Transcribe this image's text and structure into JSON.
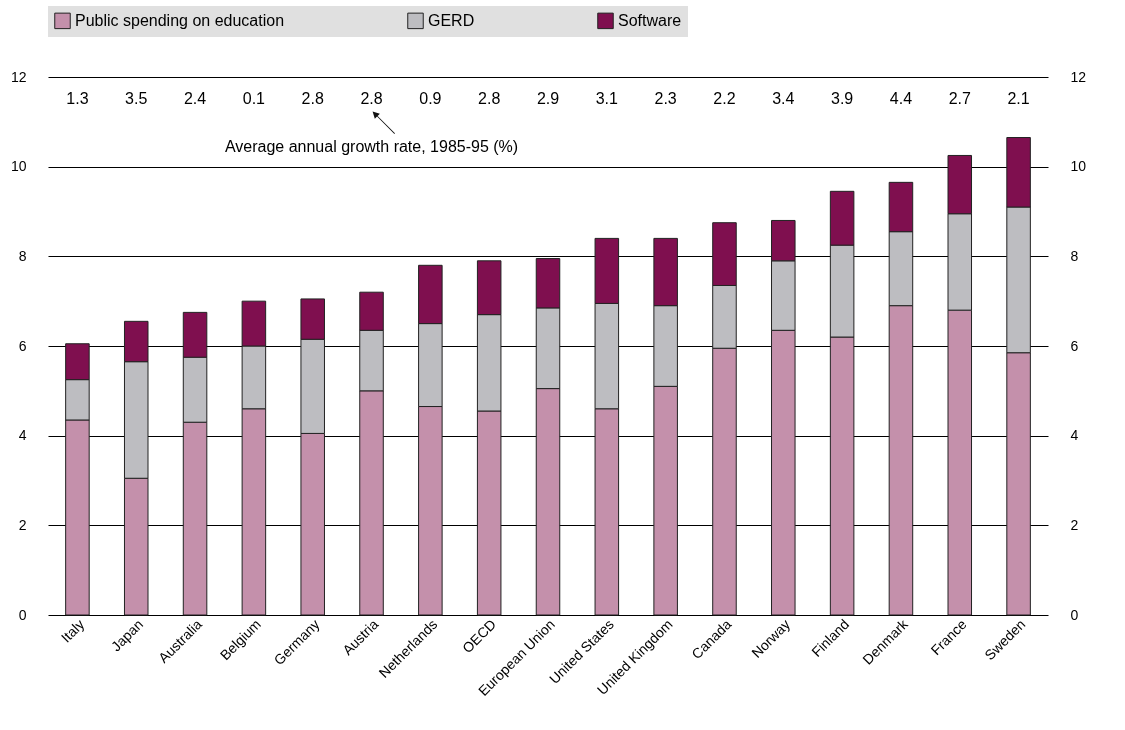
{
  "chart_data": {
    "type": "bar",
    "stacked": true,
    "categories": [
      "Italy",
      "Japan",
      "Australia",
      "Belgium",
      "Germany",
      "Austria",
      "Netherlands",
      "OECD",
      "European Union",
      "United States",
      "United Kingdom",
      "Canada",
      "Norway",
      "Finland",
      "Denmark",
      "France",
      "Sweden"
    ],
    "series": [
      {
        "name": "Public spending on education",
        "color": "#c490ab",
        "values": [
          4.35,
          3.05,
          4.3,
          4.6,
          4.05,
          5.0,
          4.65,
          4.55,
          5.05,
          4.6,
          5.1,
          5.95,
          6.35,
          6.2,
          6.9,
          6.8,
          5.85
        ]
      },
      {
        "name": "GERD",
        "color": "#bdbdc1",
        "values": [
          0.9,
          2.6,
          1.45,
          1.4,
          2.1,
          1.35,
          1.85,
          2.15,
          1.8,
          2.35,
          1.8,
          1.4,
          1.55,
          2.05,
          1.65,
          2.15,
          3.25
        ]
      },
      {
        "name": "Software",
        "color": "#7f0f4f",
        "values": [
          0.8,
          0.9,
          1.0,
          1.0,
          0.9,
          0.85,
          1.3,
          1.2,
          1.1,
          1.45,
          1.5,
          1.4,
          0.9,
          1.2,
          1.1,
          1.3,
          1.55
        ]
      }
    ],
    "ylim": [
      0,
      12
    ],
    "yticks": [
      0,
      2,
      4,
      6,
      8,
      10,
      12
    ],
    "y2lim": [
      0,
      12
    ],
    "y2ticks": [
      0,
      2,
      4,
      6,
      8,
      10,
      12
    ],
    "grid": "y",
    "legend": "top",
    "annotations": [
      "1.3",
      "3.5",
      "2.4",
      "0.1",
      "2.8",
      "2.8",
      "0.9",
      "2.8",
      "2.9",
      "3.1",
      "2.3",
      "2.2",
      "3.4",
      "3.9",
      "4.4",
      "2.7",
      "2.1",
      "Average annual growth rate, 1985-95 (%)"
    ]
  }
}
